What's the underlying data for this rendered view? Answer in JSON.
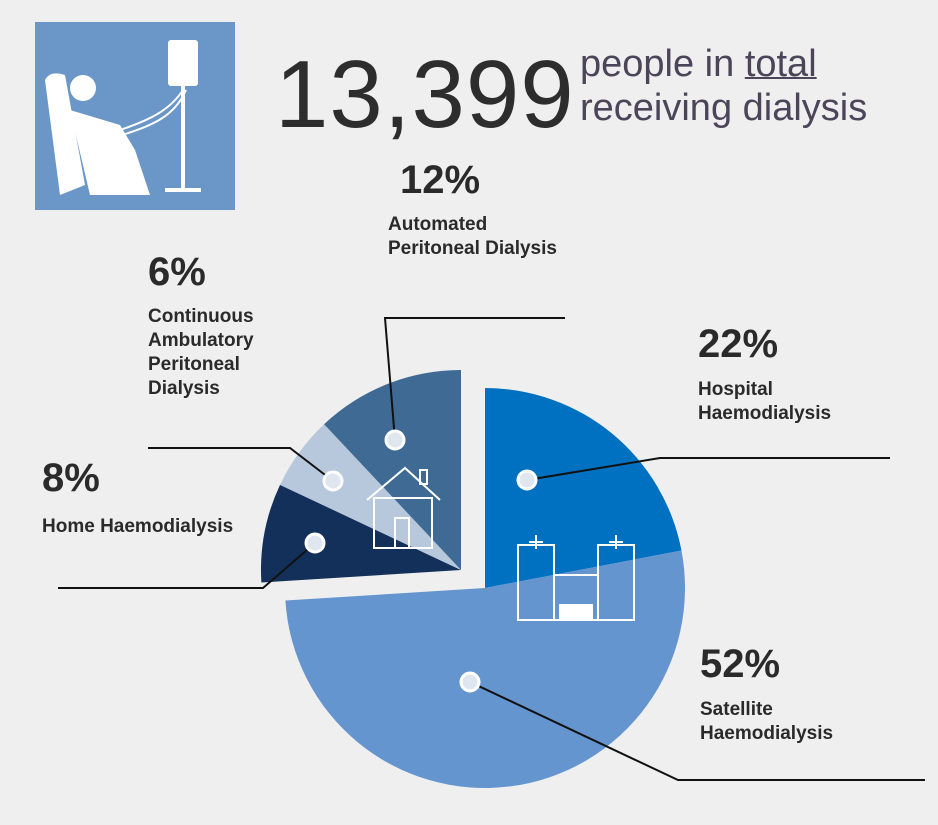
{
  "header": {
    "number": "13,399",
    "text_before": "people in",
    "emphasis": "total",
    "text_after": "receiving dialysis"
  },
  "chart_data": {
    "type": "pie",
    "categories": [
      "Hospital Haemodialysis",
      "Satellite Haemodialysis",
      "Home Haemodialysis",
      "Continuous Ambulatory Peritoneal Dialysis",
      "Automated Peritoneal Dialysis"
    ],
    "values": [
      22,
      52,
      8,
      6,
      12
    ],
    "value_labels": [
      "22%",
      "52%",
      "8%",
      "6%",
      "12%"
    ],
    "colors": [
      "#0070c0",
      "#6495cf",
      "#13305a",
      "#b8c8dc",
      "#3e6a94"
    ]
  }
}
